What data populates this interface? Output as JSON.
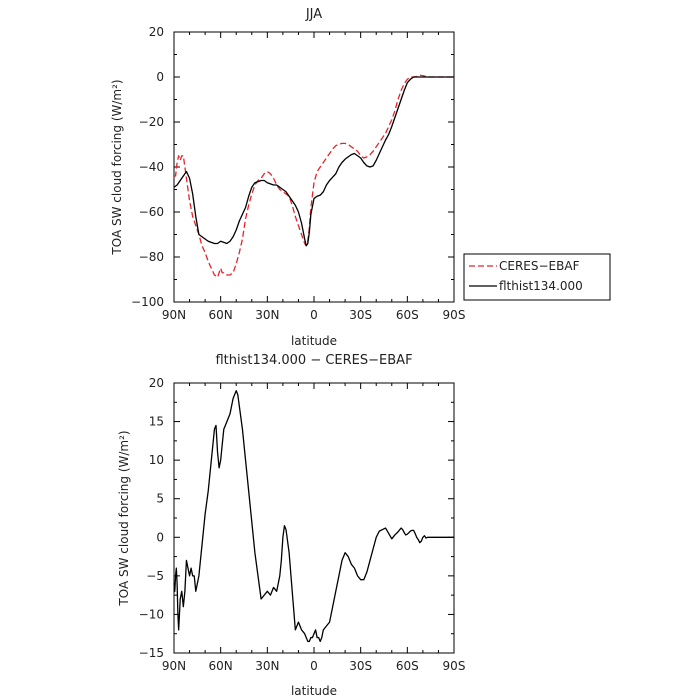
{
  "chart_data": [
    {
      "type": "line",
      "title": "JJA",
      "xlabel": "latitude",
      "ylabel": "TOA SW cloud forcing (W/m²)",
      "xlim": [
        90,
        -90
      ],
      "ylim": [
        -100,
        20
      ],
      "x_ticks": [
        {
          "value": 90,
          "label": "90N"
        },
        {
          "value": 60,
          "label": "60N"
        },
        {
          "value": 30,
          "label": "30N"
        },
        {
          "value": 0,
          "label": "0"
        },
        {
          "value": -30,
          "label": "30S"
        },
        {
          "value": -60,
          "label": "60S"
        },
        {
          "value": -90,
          "label": "90S"
        }
      ],
      "y_ticks": [
        {
          "value": 20,
          "label": "20"
        },
        {
          "value": 0,
          "label": "0"
        },
        {
          "value": -20,
          "label": "−20"
        },
        {
          "value": -40,
          "label": "−40"
        },
        {
          "value": -60,
          "label": "−60"
        },
        {
          "value": -80,
          "label": "−80"
        },
        {
          "value": -100,
          "label": "−100"
        }
      ],
      "legend_position": "right",
      "series": [
        {
          "name": "CERES−EBAF",
          "color": "#e8222a",
          "dash": "6,3",
          "x": [
            90,
            89,
            88,
            87,
            86,
            85,
            84,
            82,
            80,
            78,
            76,
            74,
            72,
            70,
            68,
            66,
            64,
            62,
            61,
            60,
            59,
            58,
            56,
            54,
            52,
            50,
            48,
            46,
            44,
            42,
            40,
            38,
            36,
            34,
            32,
            30,
            28,
            26,
            24,
            22,
            20,
            18,
            16,
            14,
            12,
            10,
            8,
            6,
            5,
            4,
            3,
            2,
            0,
            -2,
            -4,
            -6,
            -8,
            -10,
            -12,
            -14,
            -16,
            -18,
            -20,
            -22,
            -24,
            -26,
            -28,
            -30,
            -32,
            -34,
            -36,
            -38,
            -40,
            -42,
            -44,
            -46,
            -48,
            -50,
            -52,
            -54,
            -56,
            -58,
            -60,
            -62,
            -64,
            -66,
            -68,
            -70,
            -72,
            -74,
            -76,
            -78,
            -80,
            -82,
            -84,
            -86,
            -88,
            -90
          ],
          "y": [
            -44,
            -44,
            -38,
            -35,
            -37,
            -35,
            -35,
            -45,
            -55,
            -62,
            -66,
            -70,
            -75,
            -78,
            -82,
            -85,
            -88,
            -89,
            -87,
            -85,
            -87,
            -87,
            -88,
            -88,
            -87,
            -83,
            -78,
            -72,
            -63,
            -57,
            -52,
            -48,
            -46,
            -45,
            -43,
            -42,
            -43,
            -45,
            -48,
            -50,
            -51,
            -52,
            -53,
            -57,
            -62,
            -66,
            -70,
            -74,
            -75,
            -73,
            -67,
            -58,
            -47,
            -42,
            -40,
            -38,
            -36,
            -34,
            -32,
            -30.5,
            -30,
            -29.5,
            -29.5,
            -30,
            -31,
            -32,
            -33,
            -35,
            -36,
            -35.5,
            -34.5,
            -33,
            -31,
            -29,
            -27,
            -25,
            -22,
            -19,
            -15,
            -10,
            -6,
            -3,
            -1,
            0,
            0,
            0.2,
            0.8,
            0.6,
            0.2,
            0,
            0,
            0,
            0,
            0,
            0,
            0,
            0,
            0
          ]
        },
        {
          "name": "flthist134.000",
          "color": "#000000",
          "dash": "",
          "x": [
            90,
            89,
            88,
            87,
            86,
            85,
            84,
            82,
            80,
            78,
            76,
            74,
            72,
            70,
            68,
            66,
            64,
            62,
            60,
            58,
            56,
            54,
            52,
            50,
            48,
            46,
            44,
            42,
            40,
            38,
            36,
            34,
            32,
            30,
            28,
            26,
            24,
            22,
            20,
            18,
            16,
            14,
            12,
            10,
            8,
            6,
            5,
            4,
            3,
            2,
            0,
            -2,
            -4,
            -6,
            -8,
            -10,
            -12,
            -14,
            -16,
            -18,
            -20,
            -22,
            -24,
            -26,
            -28,
            -30,
            -32,
            -34,
            -36,
            -38,
            -40,
            -42,
            -44,
            -46,
            -48,
            -50,
            -52,
            -54,
            -56,
            -58,
            -60,
            -62,
            -64,
            -66,
            -68,
            -70,
            -72,
            -74,
            -76,
            -78,
            -80,
            -82,
            -84,
            -86,
            -88,
            -90
          ],
          "y": [
            -49,
            -48.5,
            -48,
            -47,
            -46,
            -45,
            -44,
            -42,
            -45,
            -52,
            -62,
            -70,
            -71,
            -72,
            -73,
            -73.5,
            -74,
            -74,
            -73,
            -73.5,
            -74,
            -73,
            -71,
            -68,
            -64,
            -61,
            -58,
            -53,
            -49,
            -47,
            -46.5,
            -46,
            -46,
            -47,
            -47.5,
            -48,
            -48,
            -49,
            -50,
            -51,
            -53,
            -55,
            -57,
            -60,
            -65,
            -72,
            -75,
            -74,
            -69,
            -61,
            -54,
            -53,
            -52.5,
            -51,
            -48,
            -46,
            -44.5,
            -43,
            -40,
            -38,
            -36.5,
            -35.5,
            -34.5,
            -34,
            -35,
            -36,
            -38,
            -39.5,
            -40,
            -39.5,
            -37,
            -34,
            -31,
            -28,
            -25.5,
            -22,
            -18,
            -14,
            -10,
            -6,
            -2.5,
            -1,
            0,
            0,
            0,
            0,
            0,
            0,
            0,
            0,
            0,
            0,
            0,
            0,
            0,
            0
          ]
        }
      ]
    },
    {
      "type": "line",
      "title": "flthist134.000 − CERES−EBAF",
      "xlabel": "latitude",
      "ylabel": "TOA SW cloud forcing (W/m²)",
      "xlim": [
        90,
        -90
      ],
      "ylim": [
        -15,
        20
      ],
      "x_ticks": [
        {
          "value": 90,
          "label": "90N"
        },
        {
          "value": 60,
          "label": "60N"
        },
        {
          "value": 30,
          "label": "30N"
        },
        {
          "value": 0,
          "label": "0"
        },
        {
          "value": -30,
          "label": "30S"
        },
        {
          "value": -60,
          "label": "60S"
        },
        {
          "value": -90,
          "label": "90S"
        }
      ],
      "y_ticks": [
        {
          "value": 20,
          "label": "20"
        },
        {
          "value": 15,
          "label": "15"
        },
        {
          "value": 10,
          "label": "10"
        },
        {
          "value": 5,
          "label": "5"
        },
        {
          "value": 0,
          "label": "0"
        },
        {
          "value": -5,
          "label": "−5"
        },
        {
          "value": -10,
          "label": "−10"
        },
        {
          "value": -15,
          "label": "−15"
        }
      ],
      "series": [
        {
          "name": "",
          "color": "#000000",
          "dash": "",
          "x": [
            90,
            89.5,
            89,
            88.5,
            88,
            87.5,
            87,
            86,
            85,
            84,
            83,
            82,
            81,
            80,
            79,
            78,
            77,
            76,
            74,
            72,
            70,
            68,
            66,
            64,
            63,
            62,
            61,
            60,
            59,
            58,
            56,
            54,
            52,
            50,
            49,
            48,
            46,
            44,
            42,
            40,
            38,
            36,
            34,
            32,
            30,
            28,
            26,
            24,
            23,
            22,
            21,
            20,
            19,
            18,
            16,
            14,
            12,
            10,
            8,
            6,
            5,
            4,
            3,
            2,
            1,
            0,
            -1,
            -2,
            -3,
            -4,
            -5,
            -6,
            -8,
            -10,
            -12,
            -14,
            -16,
            -18,
            -20,
            -22,
            -24,
            -26,
            -28,
            -30,
            -32,
            -34,
            -36,
            -38,
            -40,
            -42,
            -44,
            -46,
            -48,
            -50,
            -52,
            -54,
            -56,
            -57,
            -58,
            -59,
            -60,
            -61,
            -62,
            -63,
            -64,
            -65,
            -66,
            -67,
            -68,
            -69,
            -70,
            -71,
            -72,
            -73,
            -74,
            -75,
            -76,
            -77,
            -78,
            -79,
            -80,
            -82,
            -84,
            -86,
            -88,
            -90
          ],
          "y": [
            -6,
            -7,
            -5,
            -4,
            -6,
            -10,
            -12,
            -8,
            -7,
            -9,
            -7,
            -3,
            -4,
            -5,
            -4,
            -5,
            -5,
            -7,
            -5,
            -1,
            3,
            6,
            10,
            14,
            14.5,
            11,
            9,
            10,
            12,
            14,
            15,
            16,
            18,
            19,
            18.5,
            17,
            14,
            10,
            6,
            2,
            -2,
            -5,
            -8,
            -7.5,
            -7,
            -7.5,
            -6.5,
            -7,
            -6,
            -5,
            -3,
            0,
            1.5,
            1,
            -2,
            -7,
            -12,
            -11,
            -12,
            -12.5,
            -13,
            -13.5,
            -13.5,
            -13,
            -13,
            -12.5,
            -12,
            -13,
            -13,
            -13.5,
            -13,
            -12,
            -11.5,
            -11,
            -9,
            -7,
            -5,
            -3,
            -2,
            -2.5,
            -3.5,
            -4,
            -5,
            -5.5,
            -5.5,
            -4.5,
            -3,
            -1.5,
            0,
            0.8,
            1,
            1.2,
            0.5,
            -0.2,
            0.3,
            0.7,
            1.2,
            1,
            0.6,
            0.3,
            0.4,
            0.6,
            0.8,
            0.9,
            0.9,
            0.5,
            0,
            -0.3,
            -0.7,
            -0.5,
            0,
            0.2,
            -0.1,
            0,
            0,
            0,
            0,
            0,
            0,
            0,
            0,
            0,
            0,
            0,
            0,
            0
          ]
        }
      ]
    }
  ],
  "legend": {
    "entries": [
      {
        "label": "CERES−EBAF",
        "color": "#e8222a",
        "dash": "6,3"
      },
      {
        "label": "flthist134.000",
        "color": "#000000",
        "dash": ""
      }
    ]
  }
}
